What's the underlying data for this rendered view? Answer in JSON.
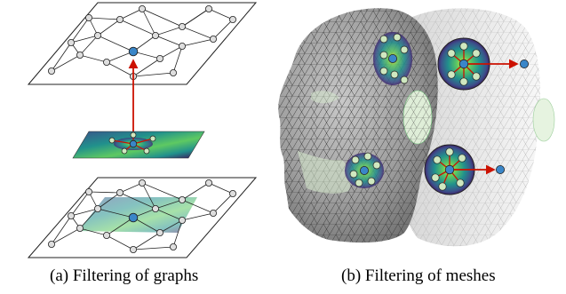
{
  "captions": {
    "a": "(a) Filtering of graphs",
    "b": "(b) Filtering of meshes"
  },
  "colors": {
    "arrow": "#cc1100",
    "node_fill": "#cfe8c0",
    "center_node": "#3a86c8",
    "wire_dark": "#3a3a3a",
    "wire_light": "#bdbdbd",
    "mesh_fill": "#a9a9a9",
    "filter_viridis": [
      "#440154",
      "#3b528b",
      "#21918c",
      "#5ec962",
      "#fde725"
    ]
  }
}
